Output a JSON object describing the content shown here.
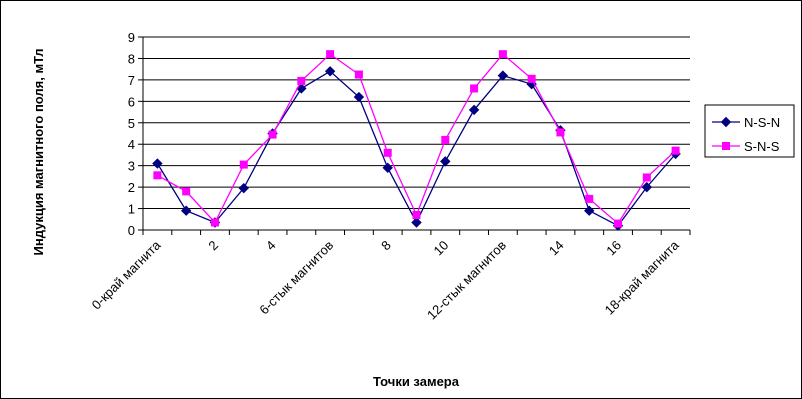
{
  "chart_data": {
    "type": "line",
    "title": "",
    "xlabel": "Точки замера",
    "ylabel": "Индукция магнитного поля, мТл",
    "ylim": [
      0,
      9
    ],
    "yticks": [
      0,
      1,
      2,
      3,
      4,
      5,
      6,
      7,
      8,
      9
    ],
    "grid": true,
    "legend_position": "right",
    "categories": [
      "0-край магнита",
      "",
      "2",
      "",
      "4",
      "",
      "6-стык магнитов",
      "",
      "8",
      "",
      "10",
      "",
      "12-стык магнитов",
      "",
      "14",
      "",
      "16",
      "",
      "18-край магнита"
    ],
    "series": [
      {
        "name": "N-S-N",
        "color": "#000080",
        "marker": "diamond",
        "values": [
          3.1,
          0.9,
          0.35,
          1.95,
          4.5,
          6.6,
          7.4,
          6.2,
          2.9,
          0.35,
          3.2,
          5.6,
          7.2,
          6.8,
          4.65,
          0.9,
          0.2,
          2.0,
          3.55
        ]
      },
      {
        "name": "S-N-S",
        "color": "#ff00ff",
        "marker": "square",
        "values": [
          2.55,
          1.8,
          0.35,
          3.05,
          4.45,
          6.95,
          8.2,
          7.25,
          3.6,
          0.7,
          4.2,
          6.6,
          8.2,
          7.05,
          4.55,
          1.45,
          0.3,
          2.45,
          3.7
        ]
      }
    ]
  }
}
